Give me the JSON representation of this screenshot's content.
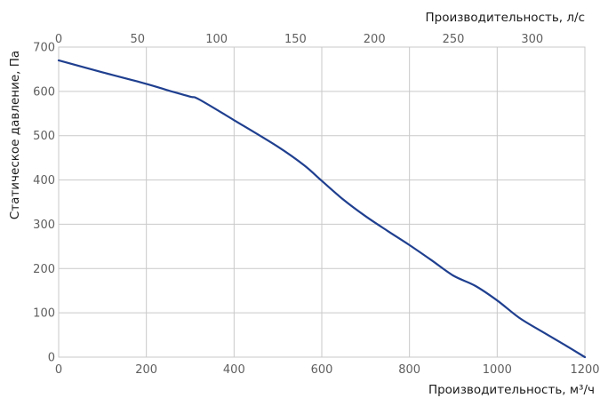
{
  "chart_data": {
    "type": "line",
    "xlabel_bottom": "Производительность, м³/ч",
    "xlabel_top": "Производительность, л/с",
    "ylabel": "Статическое давление, Па",
    "x_bottom_ticks": [
      0,
      200,
      400,
      600,
      800,
      1000,
      1200
    ],
    "x_top_ticks": [
      0,
      50,
      100,
      150,
      200,
      250,
      300
    ],
    "y_ticks": [
      0,
      100,
      200,
      300,
      400,
      500,
      600,
      700
    ],
    "xlim": [
      0,
      1200
    ],
    "xlim_top": [
      0,
      333.33
    ],
    "ylim": [
      0,
      700
    ],
    "grid": true,
    "line_color": "#1f3f8f",
    "series": [
      {
        "x": [
          0,
          100,
          200,
          250,
          300,
          320,
          400,
          500,
          560,
          600,
          650,
          700,
          750,
          800,
          850,
          900,
          950,
          1000,
          1050,
          1100,
          1150,
          1200
        ],
        "y": [
          670,
          643,
          617,
          602,
          588,
          582,
          535,
          475,
          433,
          398,
          355,
          318,
          285,
          253,
          219,
          184,
          161,
          128,
          89,
          59,
          30,
          0
        ]
      }
    ]
  }
}
